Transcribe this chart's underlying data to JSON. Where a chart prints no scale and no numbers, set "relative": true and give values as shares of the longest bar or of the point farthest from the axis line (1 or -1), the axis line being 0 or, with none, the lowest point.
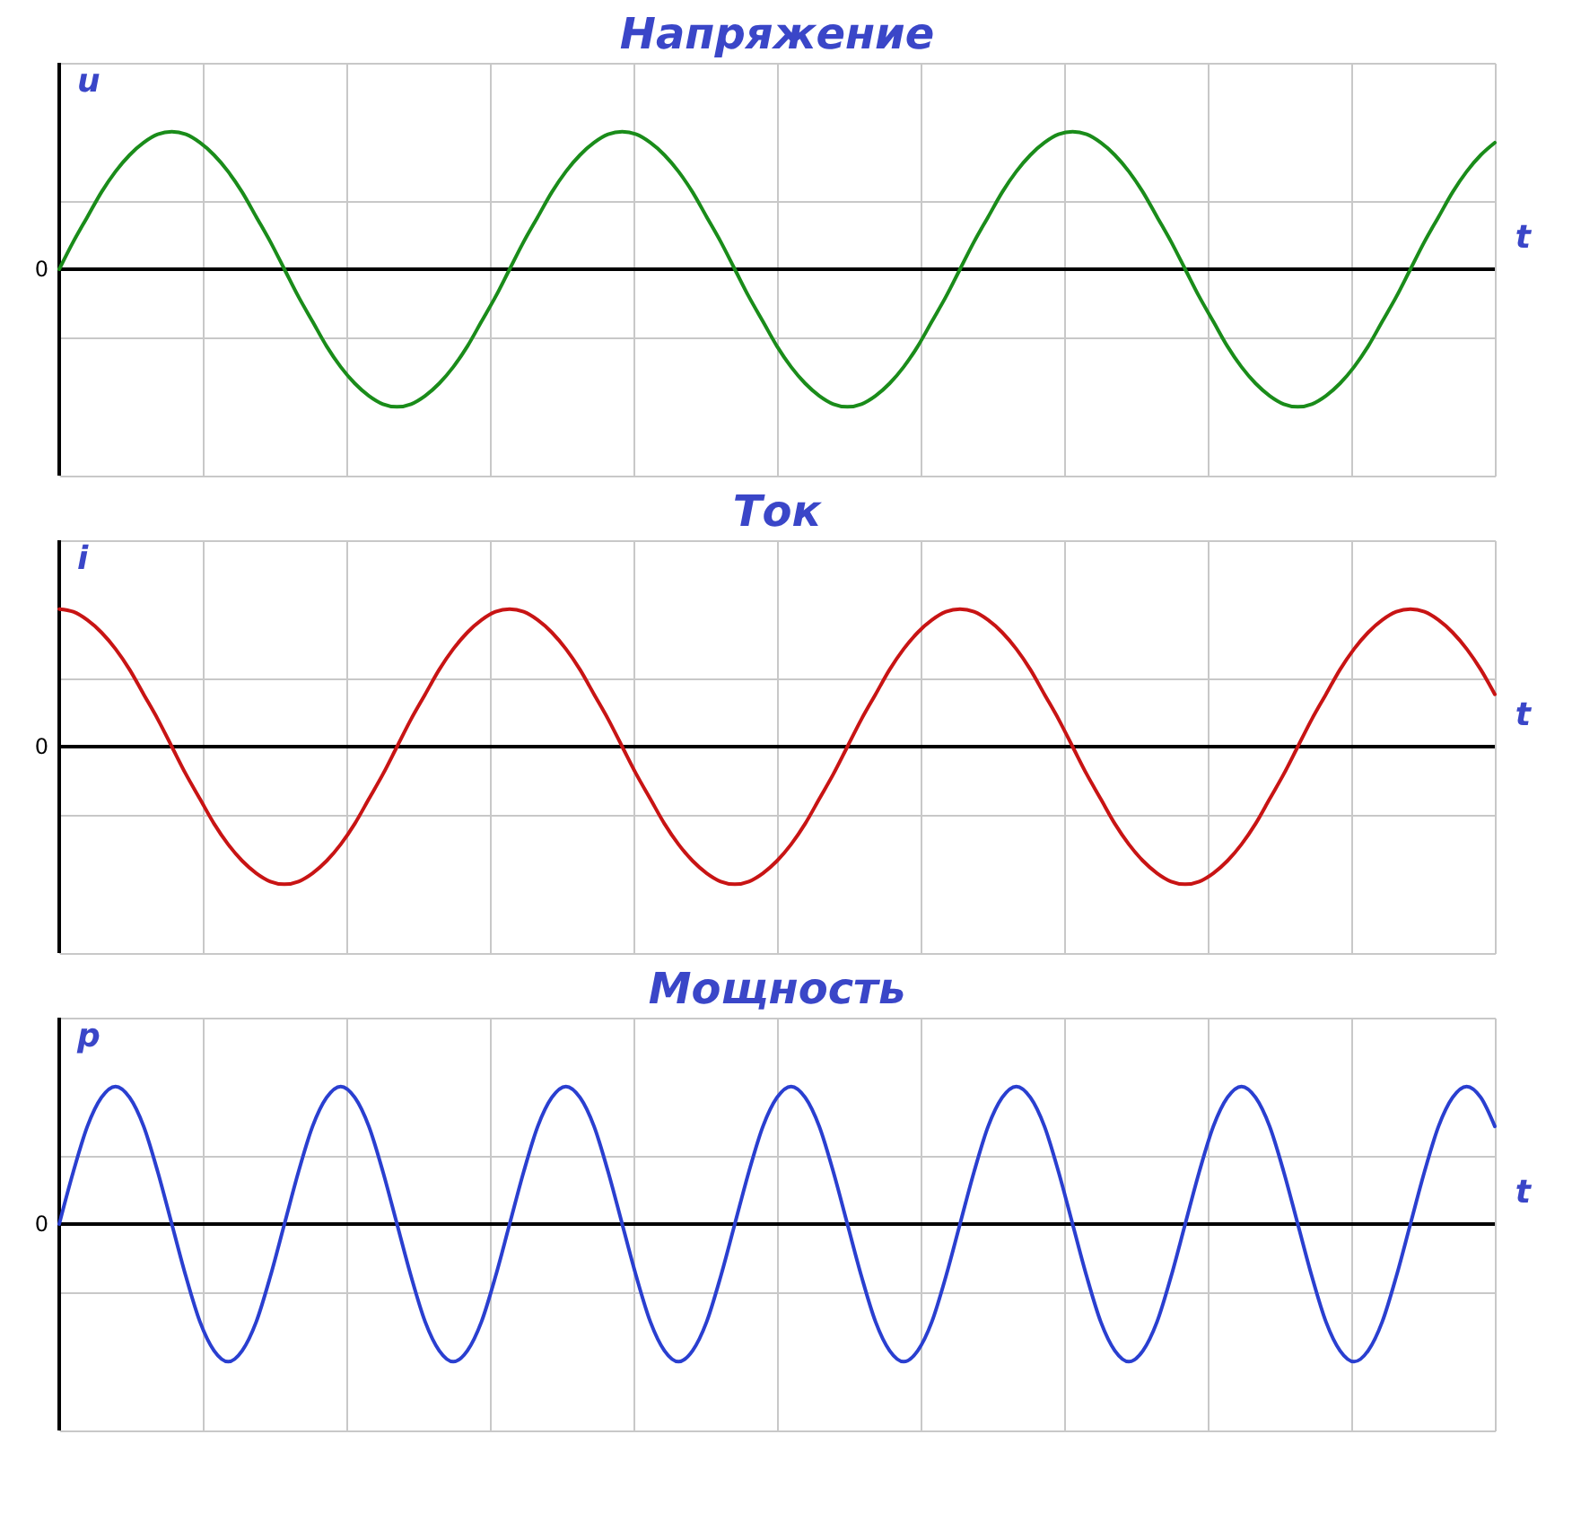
{
  "chart_data": [
    {
      "type": "line",
      "title": "Напряжение",
      "ylabel": "u",
      "xlabel": "t",
      "relative": true,
      "grid": true,
      "color": "#1a8c1a",
      "annotations": [
        "0"
      ],
      "categories": [
        null,
        null,
        null,
        null,
        null,
        null,
        null,
        null,
        null,
        null,
        null,
        null,
        null,
        null,
        null,
        null,
        null,
        null,
        null,
        null,
        null,
        null,
        null,
        null,
        null,
        null,
        null,
        null,
        null,
        null,
        null,
        null,
        null,
        null,
        null,
        null,
        null,
        null,
        null,
        null,
        null,
        null,
        null,
        null,
        null,
        null,
        null,
        null,
        null,
        null,
        null,
        null,
        null,
        null,
        null,
        null,
        null,
        null,
        null,
        null,
        null,
        null,
        null,
        null,
        null,
        null,
        null,
        null,
        null,
        null,
        null,
        null,
        null,
        null,
        null,
        null,
        null,
        null,
        null,
        null,
        null,
        null,
        null,
        null,
        null,
        null,
        null,
        null,
        null,
        null,
        null,
        null,
        null,
        null,
        null,
        null,
        null,
        null,
        null,
        null,
        null,
        null,
        null
      ],
      "values": [
        0,
        0.2,
        0.38,
        0.56,
        0.71,
        0.83,
        0.92,
        0.98,
        1,
        0.98,
        0.92,
        0.83,
        0.71,
        0.56,
        0.38,
        0.2,
        0,
        -0.2,
        -0.38,
        -0.56,
        -0.71,
        -0.83,
        -0.92,
        -0.98,
        -1,
        -0.98,
        -0.92,
        -0.83,
        -0.71,
        -0.56,
        -0.38,
        -0.2,
        0,
        0.2,
        0.38,
        0.56,
        0.71,
        0.83,
        0.92,
        0.98,
        1,
        0.98,
        0.92,
        0.83,
        0.71,
        0.56,
        0.38,
        0.2,
        0,
        -0.2,
        -0.38,
        -0.56,
        -0.71,
        -0.83,
        -0.92,
        -0.98,
        -1,
        -0.98,
        -0.92,
        -0.83,
        -0.71,
        -0.56,
        -0.38,
        -0.2,
        0,
        0.2,
        0.38,
        0.56,
        0.71,
        0.83,
        0.92,
        0.98,
        1,
        0.98,
        0.92,
        0.83,
        0.71,
        0.56,
        0.38,
        0.2,
        0,
        -0.2,
        -0.38,
        -0.56,
        -0.71,
        -0.83,
        -0.92,
        -0.98,
        -1,
        -0.98,
        -0.92,
        -0.83,
        -0.71,
        -0.56,
        -0.38,
        -0.2,
        0,
        0.2,
        0.38,
        0.56,
        0.71,
        0.83,
        0.92
      ]
    },
    {
      "type": "line",
      "title": "Ток",
      "ylabel": "i",
      "xlabel": "t",
      "relative": true,
      "grid": true,
      "color": "#c81414",
      "annotations": [
        "0"
      ],
      "categories": [
        null,
        null,
        null,
        null,
        null,
        null,
        null,
        null,
        null,
        null,
        null,
        null,
        null,
        null,
        null,
        null,
        null,
        null,
        null,
        null,
        null,
        null,
        null,
        null,
        null,
        null,
        null,
        null,
        null,
        null,
        null,
        null,
        null,
        null,
        null,
        null,
        null,
        null,
        null,
        null,
        null,
        null,
        null,
        null,
        null,
        null,
        null,
        null,
        null,
        null,
        null,
        null,
        null,
        null,
        null,
        null,
        null,
        null,
        null,
        null,
        null,
        null,
        null,
        null,
        null,
        null,
        null,
        null,
        null,
        null,
        null,
        null,
        null,
        null,
        null,
        null,
        null,
        null,
        null,
        null,
        null,
        null,
        null,
        null,
        null,
        null,
        null,
        null,
        null,
        null,
        null,
        null,
        null,
        null,
        null,
        null,
        null,
        null,
        null,
        null,
        null,
        null,
        null
      ],
      "values": [
        1,
        0.98,
        0.92,
        0.83,
        0.71,
        0.56,
        0.38,
        0.2,
        0,
        -0.2,
        -0.38,
        -0.56,
        -0.71,
        -0.83,
        -0.92,
        -0.98,
        -1,
        -0.98,
        -0.92,
        -0.83,
        -0.71,
        -0.56,
        -0.38,
        -0.2,
        0,
        0.2,
        0.38,
        0.56,
        0.71,
        0.83,
        0.92,
        0.98,
        1,
        0.98,
        0.92,
        0.83,
        0.71,
        0.56,
        0.38,
        0.2,
        0,
        -0.2,
        -0.38,
        -0.56,
        -0.71,
        -0.83,
        -0.92,
        -0.98,
        -1,
        -0.98,
        -0.92,
        -0.83,
        -0.71,
        -0.56,
        -0.38,
        -0.2,
        0,
        0.2,
        0.38,
        0.56,
        0.71,
        0.83,
        0.92,
        0.98,
        1,
        0.98,
        0.92,
        0.83,
        0.71,
        0.56,
        0.38,
        0.2,
        0,
        -0.2,
        -0.38,
        -0.56,
        -0.71,
        -0.83,
        -0.92,
        -0.98,
        -1,
        -0.98,
        -0.92,
        -0.83,
        -0.71,
        -0.56,
        -0.38,
        -0.2,
        0,
        0.2,
        0.38,
        0.56,
        0.71,
        0.83,
        0.92,
        0.98,
        1,
        0.98,
        0.92,
        0.83,
        0.71,
        0.56,
        0.38
      ]
    },
    {
      "type": "line",
      "title": "Мощность",
      "ylabel": "p",
      "xlabel": "t",
      "relative": true,
      "grid": true,
      "color": "#2a3fd0",
      "annotations": [
        "0"
      ],
      "categories": [
        null,
        null,
        null,
        null,
        null,
        null,
        null,
        null,
        null,
        null,
        null,
        null,
        null,
        null,
        null,
        null,
        null,
        null,
        null,
        null,
        null,
        null,
        null,
        null,
        null,
        null,
        null,
        null,
        null,
        null,
        null,
        null,
        null,
        null,
        null,
        null,
        null,
        null,
        null,
        null,
        null,
        null,
        null,
        null,
        null,
        null,
        null,
        null,
        null,
        null,
        null,
        null,
        null,
        null,
        null,
        null,
        null,
        null,
        null,
        null,
        null,
        null,
        null,
        null,
        null,
        null,
        null,
        null,
        null,
        null,
        null,
        null,
        null,
        null,
        null,
        null,
        null,
        null,
        null,
        null,
        null,
        null,
        null,
        null,
        null,
        null,
        null,
        null,
        null,
        null,
        null,
        null,
        null,
        null,
        null,
        null,
        null,
        null,
        null,
        null,
        null,
        null,
        null
      ],
      "values": [
        0,
        0.38,
        0.71,
        0.92,
        1,
        0.92,
        0.71,
        0.38,
        0,
        -0.38,
        -0.71,
        -0.92,
        -1,
        -0.92,
        -0.71,
        -0.38,
        0,
        0.38,
        0.71,
        0.92,
        1,
        0.92,
        0.71,
        0.38,
        0,
        -0.38,
        -0.71,
        -0.92,
        -1,
        -0.92,
        -0.71,
        -0.38,
        0,
        0.38,
        0.71,
        0.92,
        1,
        0.92,
        0.71,
        0.38,
        0,
        -0.38,
        -0.71,
        -0.92,
        -1,
        -0.92,
        -0.71,
        -0.38,
        0,
        0.38,
        0.71,
        0.92,
        1,
        0.92,
        0.71,
        0.38,
        0,
        -0.38,
        -0.71,
        -0.92,
        -1,
        -0.92,
        -0.71,
        -0.38,
        0,
        0.38,
        0.71,
        0.92,
        1,
        0.92,
        0.71,
        0.38,
        0,
        -0.38,
        -0.71,
        -0.92,
        -1,
        -0.92,
        -0.71,
        -0.38,
        0,
        0.38,
        0.71,
        0.92,
        1,
        0.92,
        0.71,
        0.38,
        0,
        -0.38,
        -0.71,
        -0.92,
        -1,
        -0.92,
        -0.71,
        -0.38,
        0,
        0.38,
        0.71,
        0.92,
        1,
        0.92,
        0.71
      ]
    }
  ]
}
